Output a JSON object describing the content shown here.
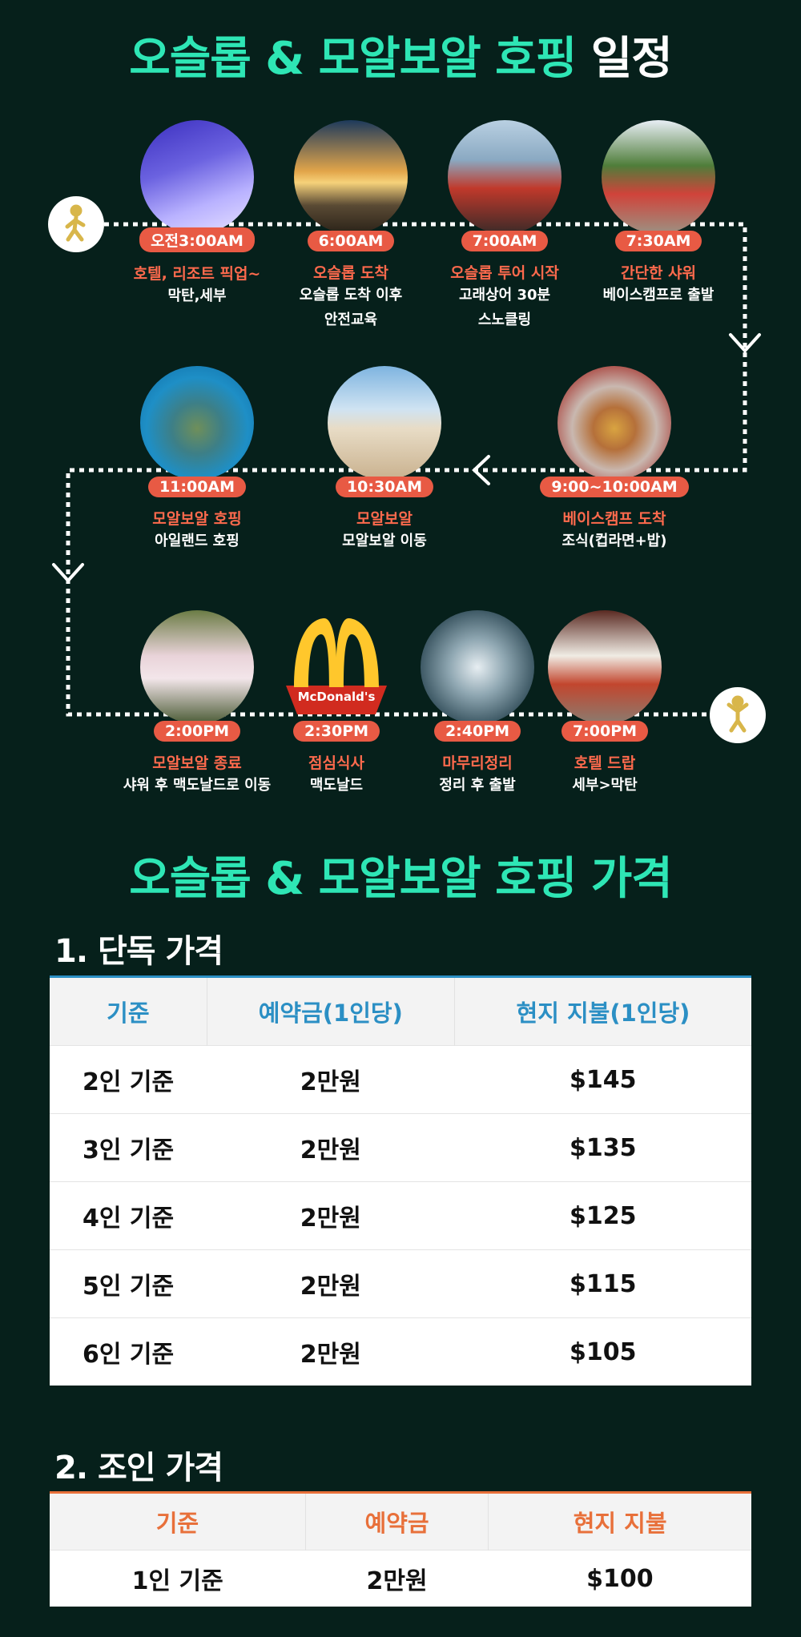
{
  "schedule_title": {
    "accent": "오슬롭 & 모알보알 호핑",
    "rest": "일정"
  },
  "colors": {
    "background": "#06201b",
    "accent": "#2ee6b5",
    "pill": "#e85a44",
    "stop_title": "#ff6a4d",
    "table1_header": "#2b8fc4",
    "table2_header": "#e8703a",
    "person_icon": "#d8b64a"
  },
  "endpoints": {
    "start_icon": "walking-person-icon",
    "end_icon": "cheering-person-icon"
  },
  "stops": [
    {
      "time": "오전3:00AM",
      "title": "호텔, 리조트 픽업~",
      "desc": "막탄,세부",
      "photo": "hotel-lounge-photo"
    },
    {
      "time": "6:00AM",
      "title": "오슬롭 도착",
      "desc": "오슬롭 도착 이후\n안전교육",
      "photo": "sunrise-beach-photo"
    },
    {
      "time": "7:00AM",
      "title": "오슬롭 투어 시작",
      "desc": "고래상어 30분\n스노클링",
      "photo": "snorkel-group-photo"
    },
    {
      "time": "7:30AM",
      "title": "간단한 샤워",
      "desc": "베이스캠프로 출발",
      "photo": "basecamp-group-photo"
    },
    {
      "time": "9:00~10:00AM",
      "title": "베이스캠프 도착",
      "desc": "조식(컵라면+밥)",
      "photo": "breakfast-table-photo"
    },
    {
      "time": "10:30AM",
      "title": "모알보알",
      "desc": "모알보알 이동",
      "photo": "turtle-on-beach-photo"
    },
    {
      "time": "11:00AM",
      "title": "모알보알 호핑",
      "desc": "아일랜드 호핑",
      "photo": "sea-turtle-photo"
    },
    {
      "time": "2:00PM",
      "title": "모알보알 종료",
      "desc": "샤워 후 맥도날드로 이동",
      "photo": "sneakers-photo"
    },
    {
      "time": "2:30PM",
      "title": "점심식사",
      "desc": "맥도날드",
      "photo": "mcdonalds-logo",
      "logo_text": "McDonald's"
    },
    {
      "time": "2:40PM",
      "title": "마무리정리",
      "desc": "정리 후 출발",
      "photo": "waterfall-dive-photo"
    },
    {
      "time": "7:00PM",
      "title": "호텔 드랍",
      "desc": "세부>막탄",
      "photo": "hotel-room-photo"
    }
  ],
  "price_title": "오슬롭 & 모알보알 호핑 가격",
  "solo": {
    "heading": "1. 단독 가격",
    "columns": [
      "기준",
      "예약금(1인당)",
      "현지 지불(1인당)"
    ],
    "rows": [
      [
        "2인 기준",
        "2만원",
        "$145"
      ],
      [
        "3인 기준",
        "2만원",
        "$135"
      ],
      [
        "4인 기준",
        "2만원",
        "$125"
      ],
      [
        "5인 기준",
        "2만원",
        "$115"
      ],
      [
        "6인 기준",
        "2만원",
        "$105"
      ]
    ]
  },
  "join": {
    "heading": "2. 조인 가격",
    "columns": [
      "기준",
      "예약금",
      "현지 지불"
    ],
    "rows": [
      [
        "1인 기준",
        "2만원",
        "$100"
      ]
    ]
  }
}
